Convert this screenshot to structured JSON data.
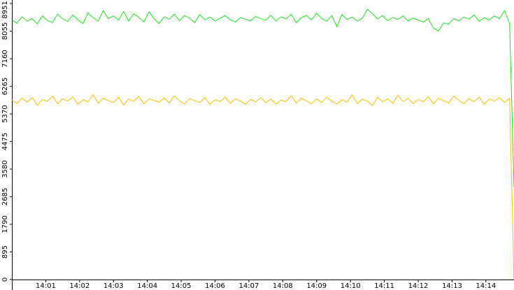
{
  "chart_data": {
    "type": "line",
    "x": [
      0,
      0.15,
      0.3,
      0.45,
      0.6,
      0.75,
      0.9,
      1.05,
      1.2,
      1.35,
      1.5,
      1.65,
      1.8,
      1.95,
      2.1,
      2.25,
      2.4,
      2.55,
      2.7,
      2.85,
      3,
      3.15,
      3.3,
      3.45,
      3.6,
      3.75,
      3.9,
      4.05,
      4.2,
      4.35,
      4.5,
      4.65,
      4.8,
      4.95,
      5.1,
      5.25,
      5.4,
      5.55,
      5.7,
      5.85,
      6,
      6.15,
      6.3,
      6.45,
      6.6,
      6.75,
      6.9,
      7.05,
      7.2,
      7.35,
      7.5,
      7.65,
      7.8,
      7.95,
      8.1,
      8.25,
      8.4,
      8.55,
      8.7,
      8.85,
      9,
      9.15,
      9.3,
      9.45,
      9.6,
      9.75,
      9.9,
      10.05,
      10.2,
      10.35,
      10.5,
      10.65,
      10.8,
      10.95,
      11.1,
      11.25,
      11.4,
      11.55,
      11.7,
      11.85,
      12,
      12.15,
      12.3,
      12.45,
      12.6,
      12.75,
      12.9,
      13.05,
      13.2,
      13.35,
      13.5,
      13.65,
      13.8,
      13.95,
      14.1,
      14.25,
      14.4,
      14.55,
      14.7,
      14.83
    ],
    "series": [
      {
        "color": "#22dd22",
        "values": [
          8420,
          8310,
          8520,
          8380,
          8460,
          8290,
          8550,
          8400,
          8330,
          8610,
          8450,
          8370,
          8580,
          8420,
          8300,
          8640,
          8490,
          8380,
          8720,
          8460,
          8550,
          8410,
          8690,
          8380,
          8620,
          8500,
          8350,
          8680,
          8460,
          8300,
          8520,
          8440,
          8610,
          8390,
          8560,
          8470,
          8330,
          8590,
          8420,
          8510,
          8380,
          8470,
          8560,
          8420,
          8350,
          8500,
          8440,
          8390,
          8530,
          8460,
          8410,
          8570,
          8380,
          8520,
          8450,
          8600,
          8330,
          8490,
          8560,
          8420,
          8640,
          8470,
          8380,
          8560,
          8200,
          8590,
          8430,
          8510,
          8380,
          8470,
          8760,
          8620,
          8450,
          8560,
          8390,
          8500,
          8430,
          8550,
          8380,
          8480,
          8410,
          8350,
          8470,
          8150,
          8060,
          8320,
          8280,
          8460,
          8390,
          8510,
          8440,
          8580,
          8370,
          8490,
          8420,
          8550,
          8460,
          8720,
          8300,
          3000
        ]
      },
      {
        "color": "#f2c200",
        "values": [
          5820,
          5710,
          5880,
          5760,
          5900,
          5650,
          5840,
          5780,
          5950,
          5700,
          5860,
          5790,
          5920,
          5680,
          5830,
          5760,
          5990,
          5720,
          5880,
          5800,
          5740,
          5910,
          5660,
          5850,
          5780,
          5930,
          5700,
          5860,
          5810,
          5750,
          5890,
          5720,
          5960,
          5780,
          5690,
          5870,
          5800,
          5740,
          5900,
          5680,
          5830,
          5770,
          5920,
          5710,
          5860,
          5790,
          5680,
          5840,
          5760,
          5900,
          5730,
          5850,
          5690,
          5820,
          5770,
          5960,
          5720,
          5880,
          5790,
          5700,
          5860,
          5740,
          5910,
          5780,
          5690,
          5830,
          5750,
          5990,
          5700,
          5850,
          5780,
          5640,
          5910,
          5760,
          5860,
          5720,
          5980,
          5770,
          5880,
          5700,
          5840,
          5760,
          5930,
          5690,
          5880,
          5790,
          5720,
          5950,
          5810,
          5700,
          5870,
          5760,
          5920,
          5680,
          5850,
          5790,
          5900,
          5740,
          5880,
          0
        ]
      }
    ],
    "xlim": [
      0,
      14.83
    ],
    "xticks": [
      {
        "value": 1,
        "label": "14:01"
      },
      {
        "value": 2,
        "label": "14:02"
      },
      {
        "value": 3,
        "label": "14:03"
      },
      {
        "value": 4,
        "label": "14:04"
      },
      {
        "value": 5,
        "label": "14:05"
      },
      {
        "value": 6,
        "label": "14:06"
      },
      {
        "value": 7,
        "label": "14:07"
      },
      {
        "value": 8,
        "label": "14:08"
      },
      {
        "value": 9,
        "label": "14:09"
      },
      {
        "value": 10,
        "label": "14:10"
      },
      {
        "value": 11,
        "label": "14:11"
      },
      {
        "value": 12,
        "label": "14:12"
      },
      {
        "value": 13,
        "label": "14:13"
      },
      {
        "value": 14,
        "label": "14:14"
      }
    ],
    "ylim": [
      0,
      8951
    ],
    "yticks": [
      0,
      895,
      1790,
      2685,
      3580,
      4475,
      5370,
      6265,
      7160,
      8055,
      8951
    ]
  }
}
